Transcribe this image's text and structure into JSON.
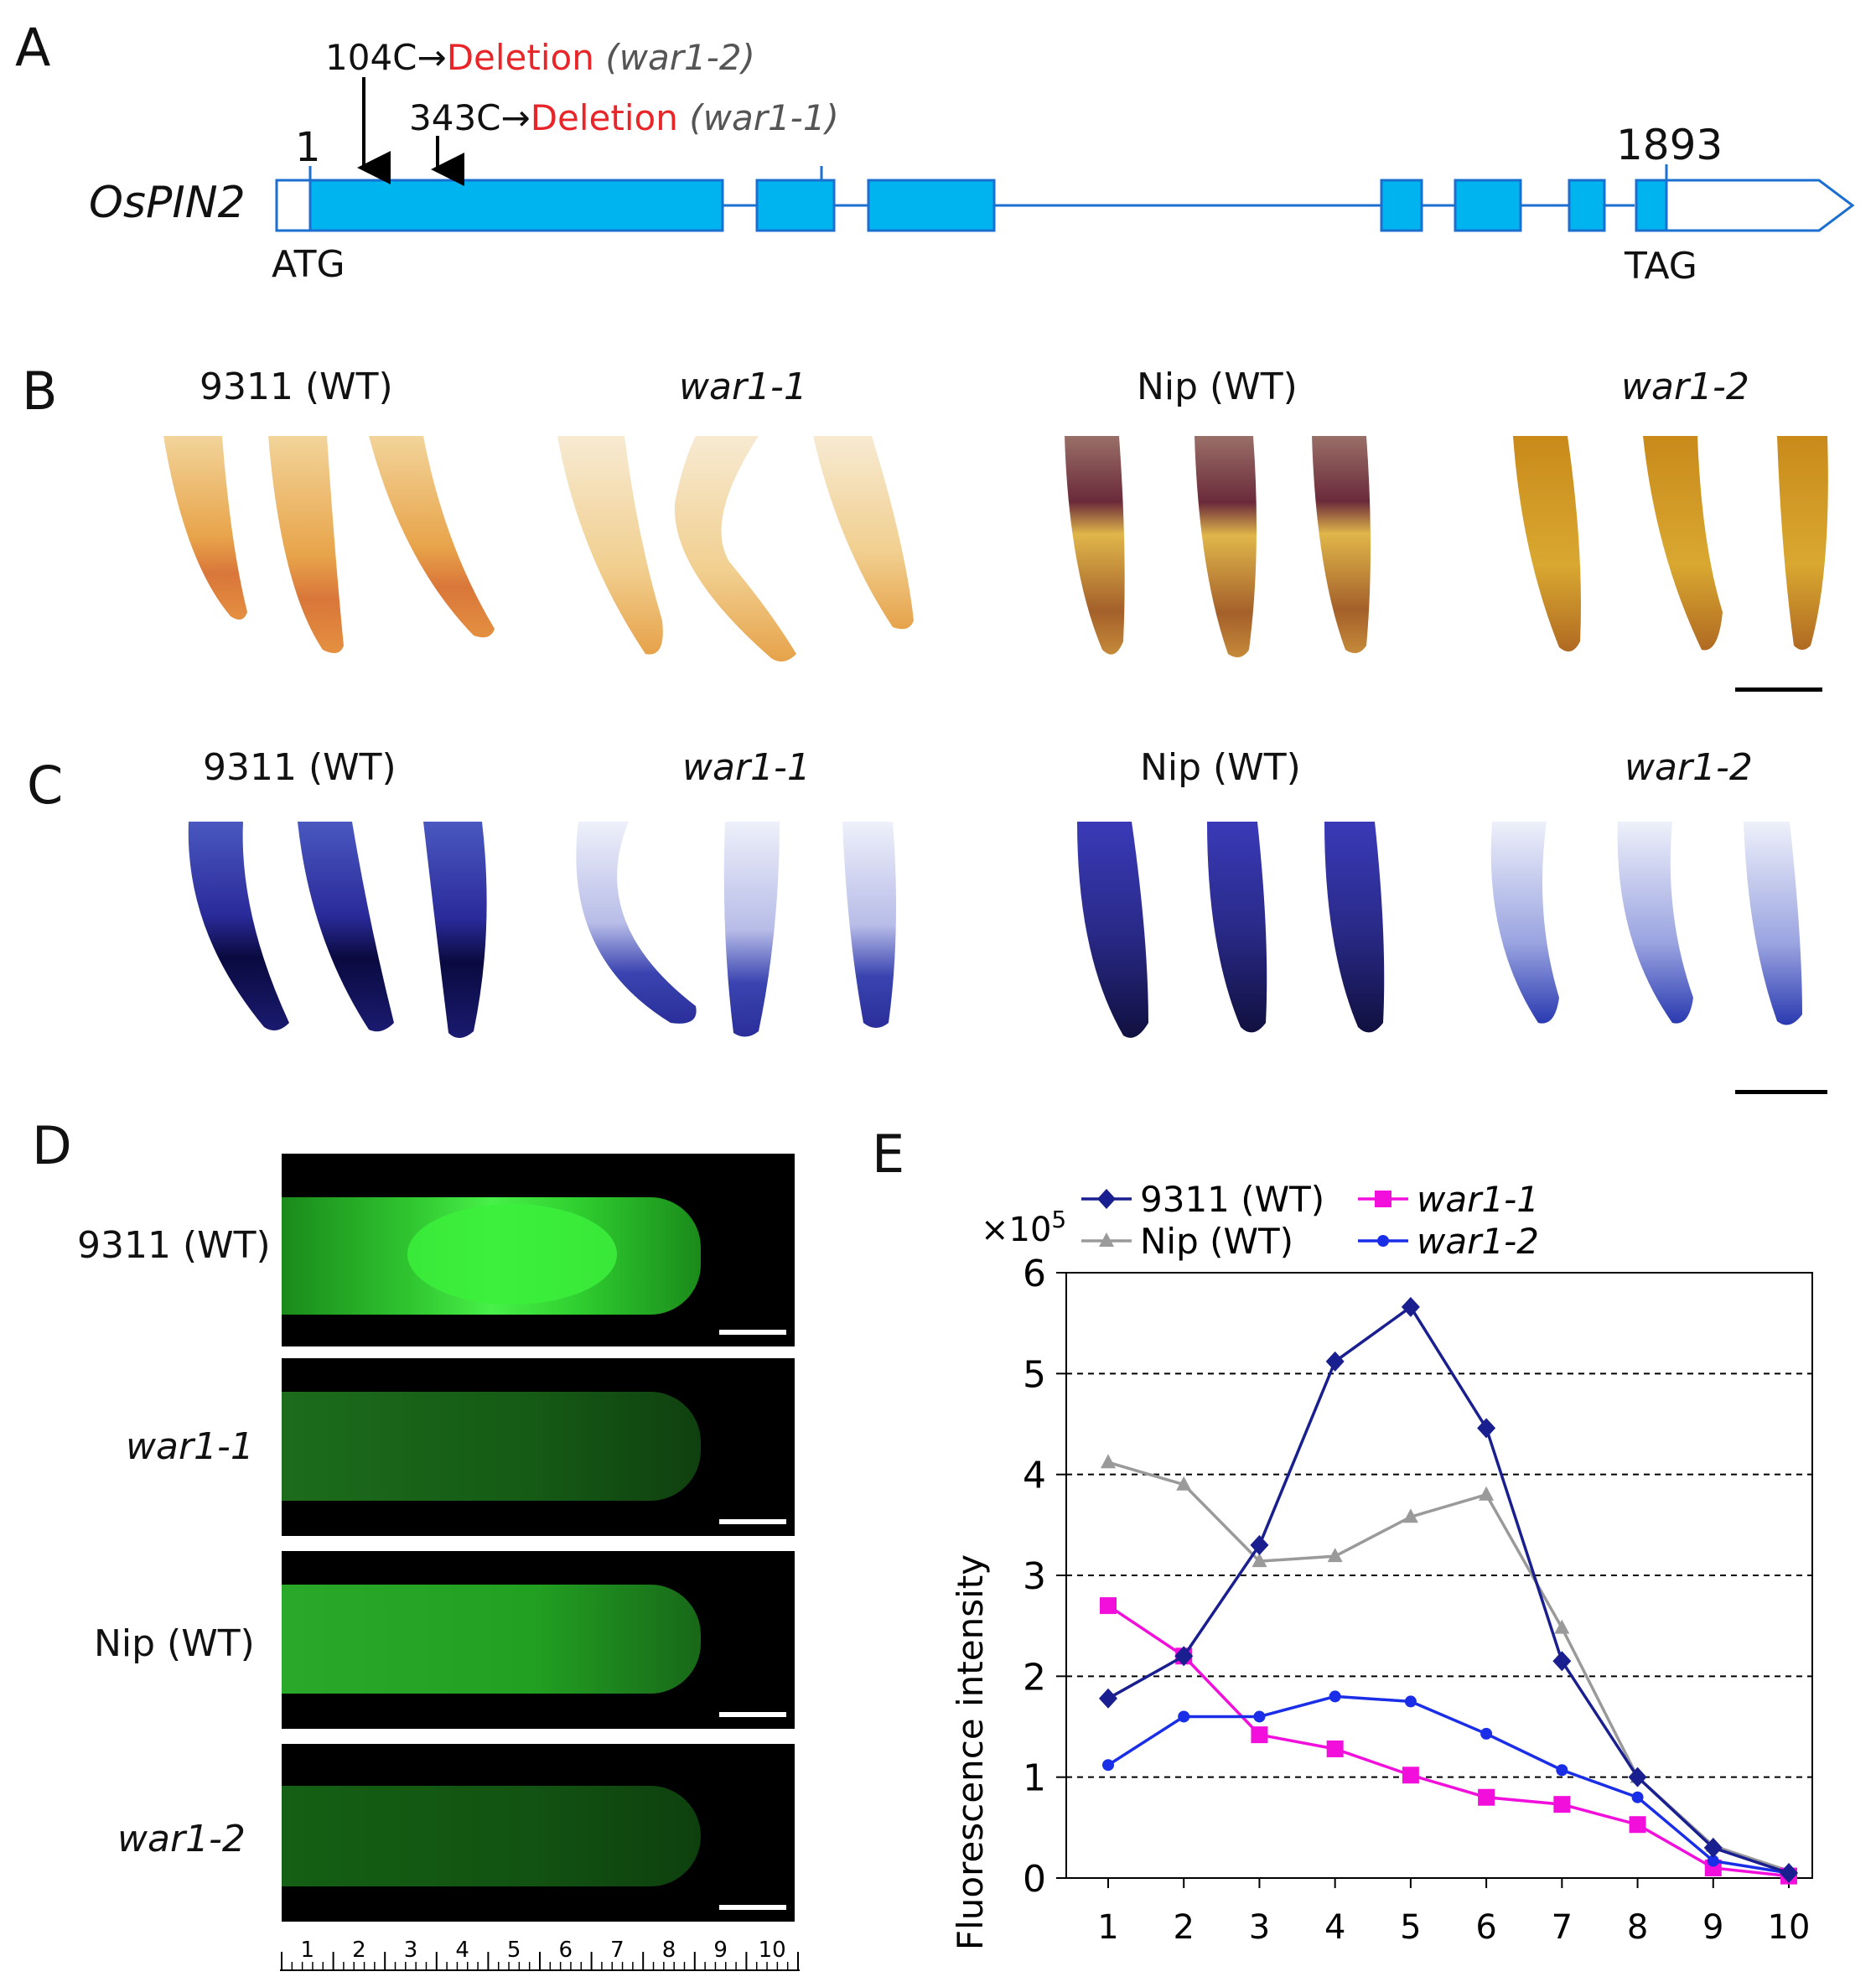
{
  "panels": {
    "a": "A",
    "b": "B",
    "c": "C",
    "d": "D",
    "e": "E"
  },
  "gene": {
    "name": "OsPIN2",
    "start_pos": "1",
    "end_pos": "1893",
    "start_codon": "ATG",
    "stop_codon": "TAG",
    "mutation1": {
      "site": "104C",
      "arrow": "→",
      "change": "Deletion",
      "allele": "(war1-2)"
    },
    "mutation2": {
      "site": "343C",
      "arrow": "→",
      "change": "Deletion",
      "allele": "(war1-1)"
    },
    "colors": {
      "exon": "#00b4f0",
      "outline": "#1a6fd0"
    }
  },
  "genotypes": {
    "wt1": "9311 (WT)",
    "mut1": "war1-1",
    "wt2": "Nip (WT)",
    "mut2": "war1-2"
  },
  "chart_data": {
    "type": "line",
    "x": [
      1,
      2,
      3,
      4,
      5,
      6,
      7,
      8,
      9,
      10
    ],
    "ylim": [
      0,
      6
    ],
    "yticks": [
      "0",
      "1",
      "2",
      "3",
      "4",
      "5",
      "6"
    ],
    "xticks": [
      "1",
      "2",
      "3",
      "4",
      "5",
      "6",
      "7",
      "8",
      "9",
      "10"
    ],
    "ylabel": "Fluorescence intensity",
    "yscale_label": "×10",
    "yscale_exp": "5",
    "grid": "horizontal dashed",
    "legend_position": "top",
    "series": [
      {
        "name": "9311 (WT)",
        "color": "#1a1f8f",
        "marker": "diamond",
        "values": [
          1.78,
          2.2,
          3.3,
          5.12,
          5.66,
          4.46,
          2.15,
          1.0,
          0.3,
          0.05
        ]
      },
      {
        "name": "war1-1",
        "color": "#f20fdc",
        "marker": "square",
        "values": [
          2.7,
          2.2,
          1.42,
          1.28,
          1.02,
          0.8,
          0.73,
          0.53,
          0.1,
          0.02
        ]
      },
      {
        "name": "Nip (WT)",
        "color": "#9a9a9a",
        "marker": "triangle",
        "values": [
          4.12,
          3.9,
          3.14,
          3.19,
          3.58,
          3.8,
          2.48,
          1.0,
          0.32,
          0.07
        ]
      },
      {
        "name": "war1-2",
        "color": "#1a2ee8",
        "marker": "circle",
        "values": [
          1.12,
          1.6,
          1.6,
          1.8,
          1.75,
          1.43,
          1.07,
          0.8,
          0.17,
          0.05
        ]
      }
    ]
  },
  "ruler": {
    "ticks": [
      "1",
      "2",
      "3",
      "4",
      "5",
      "6",
      "7",
      "8",
      "9",
      "10"
    ]
  }
}
